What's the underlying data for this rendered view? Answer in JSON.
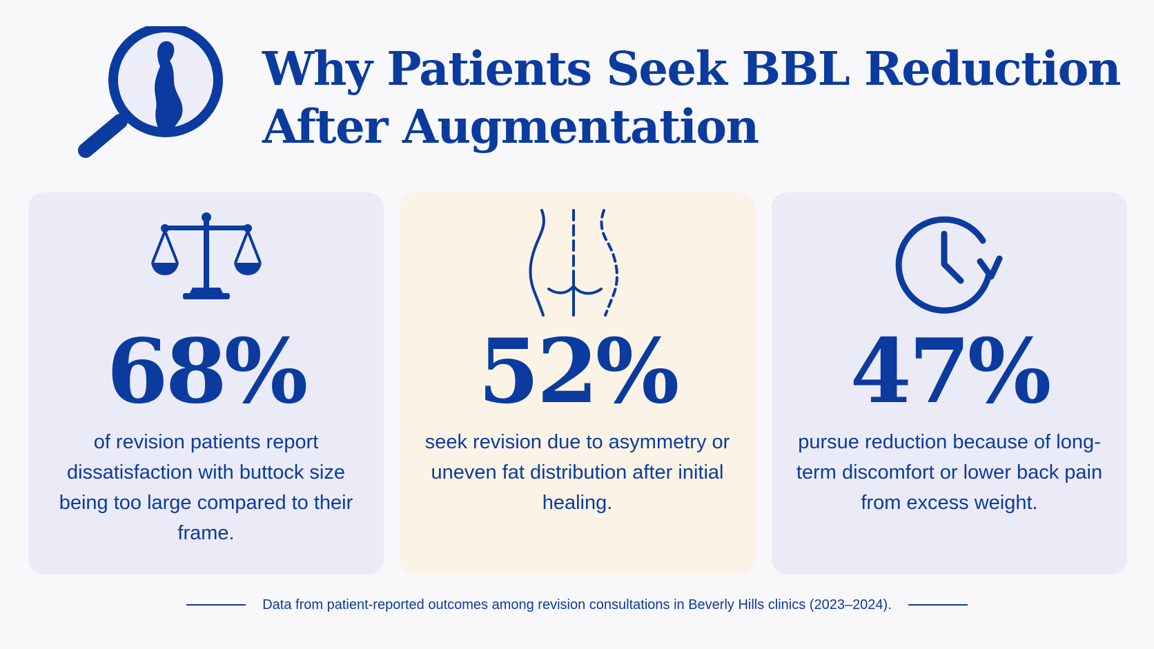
{
  "header": {
    "title_line1": "Why Patients Seek BBL Reduction",
    "title_line2": "After Augmentation",
    "icon": "magnifier-silhouette-icon"
  },
  "cards": [
    {
      "icon": "scales-icon",
      "stat": "68%",
      "description": "of revision patients report dissatisfaction with buttock size being too large compared to their frame."
    },
    {
      "icon": "body-contour-icon",
      "stat": "52%",
      "description": "seek revision due to asymmetry or uneven fat distribution after initial healing."
    },
    {
      "icon": "clock-refresh-icon",
      "stat": "47%",
      "description": "pursue reduction because of long-term discomfort or lower back pain from excess weight."
    }
  ],
  "footer": {
    "note": "Data from patient-reported outcomes among revision consultations in Beverly Hills clinics (2023–2024)."
  },
  "colors": {
    "primary": "#0b3b9e",
    "card_lavender": "#ebebf8",
    "card_cream": "#fbf3e6",
    "background": "#f8f8fb"
  }
}
